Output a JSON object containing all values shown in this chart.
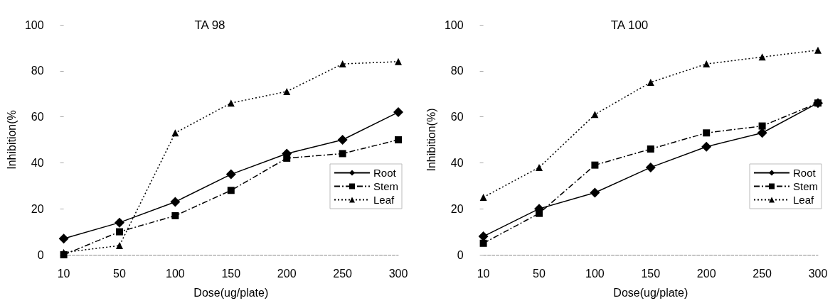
{
  "chart_data": [
    {
      "type": "line",
      "title": "TA 98",
      "xlabel": "Dose(ug/plate)",
      "ylabel": "Inhibition(%",
      "categories": [
        "10",
        "50",
        "100",
        "150",
        "200",
        "250",
        "300"
      ],
      "ylim": [
        0,
        100
      ],
      "yticks": [
        0,
        20,
        40,
        60,
        80,
        100
      ],
      "grid": false,
      "legend": "bottom right",
      "series": [
        {
          "name": "Root",
          "color": "#000000",
          "marker": "diamond",
          "line_style": "solid",
          "values": [
            7,
            14,
            23,
            35,
            44,
            50,
            62
          ]
        },
        {
          "name": "Stem",
          "color": "#000000",
          "marker": "square",
          "line_style": "dashed",
          "values": [
            0,
            10,
            17,
            28,
            42,
            44,
            50
          ]
        },
        {
          "name": "Leaf",
          "color": "#000000",
          "marker": "triangle",
          "line_style": "dotted",
          "values": [
            1,
            4,
            53,
            66,
            71,
            83,
            84
          ]
        }
      ]
    },
    {
      "type": "line",
      "title": "TA 100",
      "xlabel": "Dose(ug/plate)",
      "ylabel": "Inhibition(%)",
      "categories": [
        "10",
        "50",
        "100",
        "150",
        "200",
        "250",
        "300"
      ],
      "ylim": [
        0,
        100
      ],
      "yticks": [
        0,
        20,
        40,
        60,
        80,
        100
      ],
      "grid": false,
      "legend": "bottom right",
      "series": [
        {
          "name": "Root",
          "color": "#000000",
          "marker": "diamond",
          "line_style": "solid",
          "values": [
            8,
            20,
            27,
            38,
            47,
            53,
            66
          ]
        },
        {
          "name": "Stem",
          "color": "#000000",
          "marker": "square",
          "line_style": "dashed",
          "values": [
            5,
            18,
            39,
            46,
            53,
            56,
            66
          ]
        },
        {
          "name": "Leaf",
          "color": "#000000",
          "marker": "triangle",
          "line_style": "dotted",
          "values": [
            25,
            38,
            61,
            75,
            83,
            86,
            89
          ]
        }
      ]
    }
  ]
}
